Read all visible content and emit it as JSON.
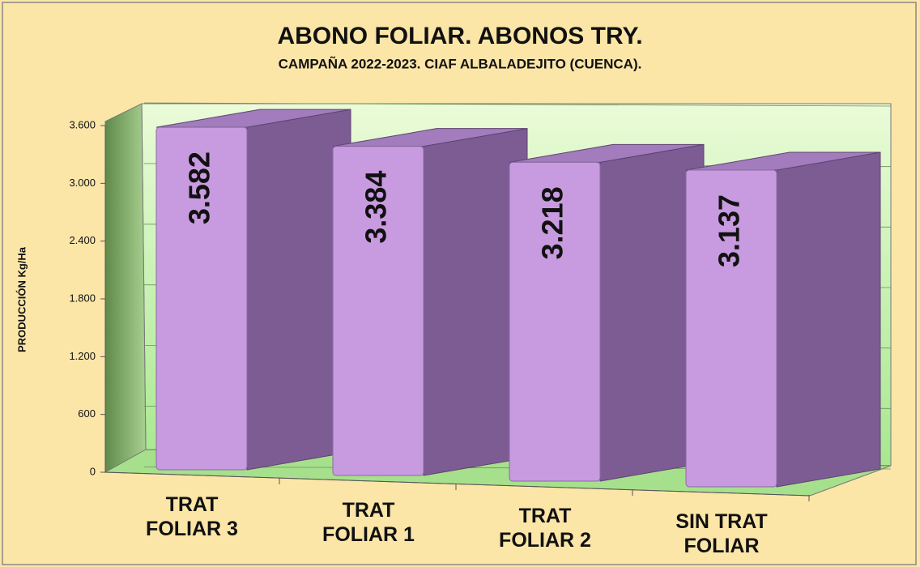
{
  "chart_data": {
    "type": "bar3d",
    "title": "ABONO FOLIAR.  ABONOS TRY.",
    "subtitle": "CAMPAÑA 2022-2023. CIAF ALBALADEJITO (CUENCA).",
    "y_label": "PRODUCCIÓN  Kg/Ha",
    "categories": [
      "TRAT FOLIAR 3",
      "TRAT FOLIAR 1",
      "TRAT FOLIAR 2",
      "SIN TRAT FOLIAR"
    ],
    "values": [
      3582,
      3384,
      3218,
      3137
    ],
    "value_labels": [
      "3.582",
      "3.384",
      "3.218",
      "3.137"
    ],
    "color": "#c89be0",
    "ylim": [
      0,
      3600
    ],
    "yticks": [
      0,
      600,
      {
        "value": 1200,
        "label": "1.200"
      },
      {
        "value": 1800,
        "label": "1.800"
      },
      {
        "value": 2400,
        "label": "2.400"
      },
      {
        "value": 3000,
        "label": "3.000"
      },
      {
        "value": 3600,
        "label": "3.600"
      }
    ],
    "grid": true
  }
}
